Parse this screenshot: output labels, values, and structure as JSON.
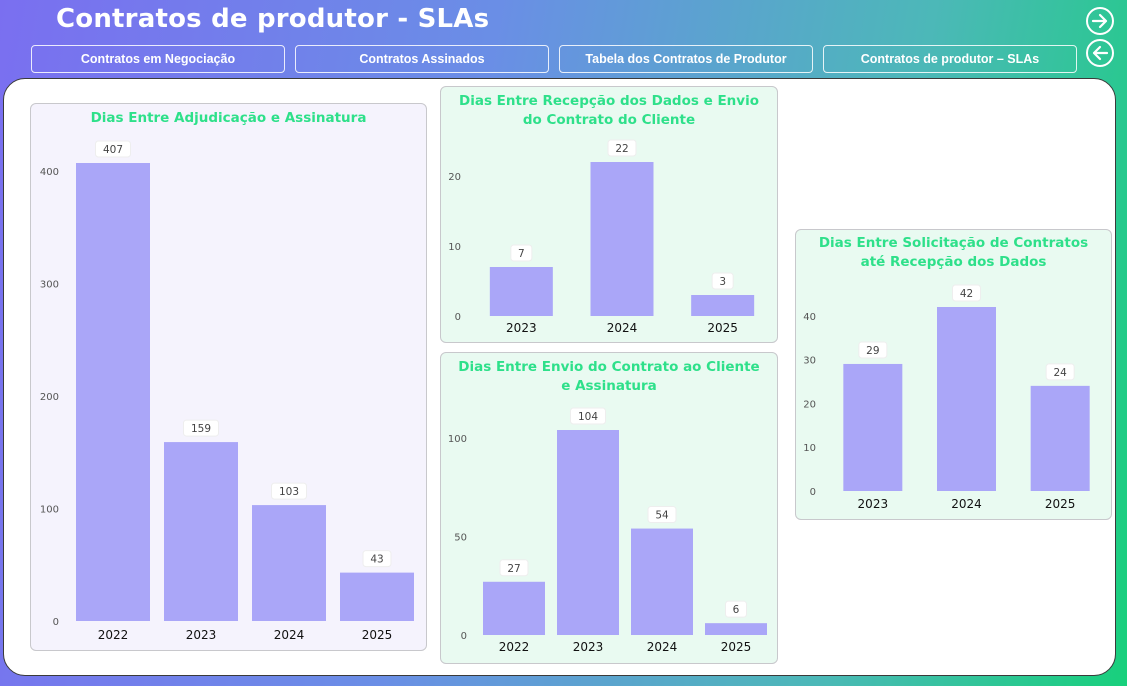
{
  "header": {
    "title": "Contratos de produtor - SLAs",
    "tabs": [
      {
        "label": "Contratos em Negociação"
      },
      {
        "label": "Contratos Assinados"
      },
      {
        "label": "Tabela dos Contratos de Produtor"
      },
      {
        "label": "Contratos de produtor – SLAs"
      }
    ]
  },
  "icons": {
    "forward": "arrow-right-circle-icon",
    "back": "arrow-left-circle-icon"
  },
  "colors": {
    "bar": "#aaa6f8",
    "title": "#2ee08a",
    "purple_card": "#f5f3fd",
    "green_card": "#e9faf1"
  },
  "chart_data": [
    {
      "type": "bar",
      "title": "Dias Entre Adjudicação e Assinatura",
      "categories": [
        "2022",
        "2023",
        "2024",
        "2025"
      ],
      "values": [
        407,
        159,
        103,
        43
      ],
      "yticks": [
        0,
        100,
        200,
        300,
        400
      ],
      "ylim": [
        0,
        407
      ]
    },
    {
      "type": "bar",
      "title": "Dias Entre Recepção dos Dados e Envio do Contrato do Cliente",
      "categories": [
        "2023",
        "2024",
        "2025"
      ],
      "values": [
        7,
        22,
        3
      ],
      "yticks": [
        0,
        10,
        20
      ],
      "ylim": [
        0,
        22
      ]
    },
    {
      "type": "bar",
      "title": "Dias Entre Envio do Contrato ao Cliente e Assinatura",
      "categories": [
        "2022",
        "2023",
        "2024",
        "2025"
      ],
      "values": [
        27,
        104,
        54,
        6
      ],
      "yticks": [
        0,
        50,
        100
      ],
      "ylim": [
        0,
        104
      ]
    },
    {
      "type": "bar",
      "title": "Dias Entre Solicitação de Contratos até Recepção dos Dados",
      "categories": [
        "2023",
        "2024",
        "2025"
      ],
      "values": [
        29,
        42,
        24
      ],
      "yticks": [
        0,
        10,
        20,
        30,
        40
      ],
      "ylim": [
        0,
        42
      ]
    }
  ]
}
